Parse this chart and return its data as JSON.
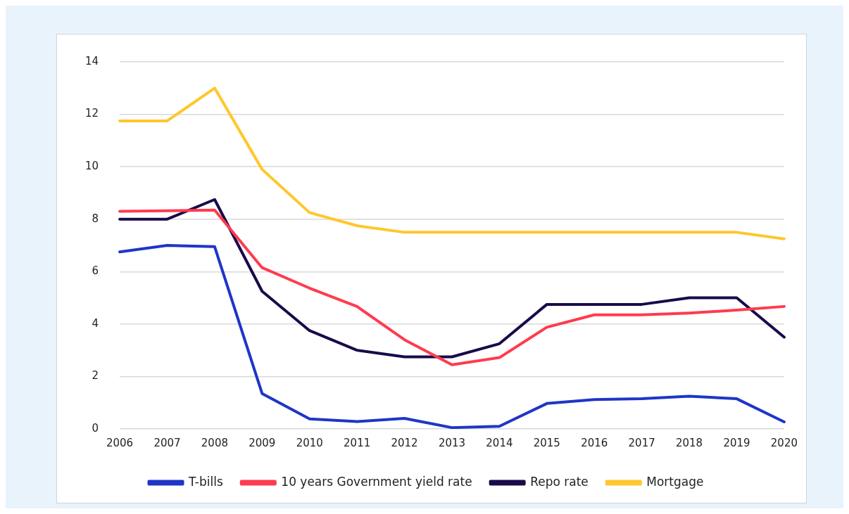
{
  "chart_data": {
    "type": "line",
    "categories": [
      "2006",
      "2007",
      "2008",
      "2009",
      "2010",
      "2011",
      "2012",
      "2013",
      "2014",
      "2015",
      "2016",
      "2017",
      "2018",
      "2019",
      "2020"
    ],
    "series": [
      {
        "name": "T-bills",
        "color": "#1f35c8",
        "values": [
          6.75,
          7.0,
          6.95,
          1.35,
          0.38,
          0.28,
          0.4,
          0.05,
          0.1,
          0.97,
          1.12,
          1.15,
          1.25,
          1.15,
          0.27
        ]
      },
      {
        "name": "10 years Government yield rate",
        "color": "#ff3b4e",
        "values": [
          8.3,
          8.32,
          8.35,
          6.15,
          5.37,
          4.67,
          3.4,
          2.45,
          2.72,
          3.88,
          4.35,
          4.35,
          4.42,
          4.53,
          4.67
        ]
      },
      {
        "name": "Repo rate",
        "color": "#1a0a4a",
        "values": [
          8.0,
          8.0,
          8.75,
          5.25,
          3.75,
          3.0,
          2.75,
          2.75,
          3.25,
          4.75,
          4.75,
          4.75,
          5.0,
          5.0,
          3.5
        ]
      },
      {
        "name": "Mortgage",
        "color": "#ffc72c",
        "values": [
          11.75,
          11.75,
          13.0,
          9.9,
          8.25,
          7.75,
          7.5,
          7.5,
          7.5,
          7.5,
          7.5,
          7.5,
          7.5,
          7.5,
          7.25
        ]
      }
    ],
    "ylim": [
      0,
      14
    ],
    "yticks": [
      0,
      2,
      4,
      6,
      8,
      10,
      12,
      14
    ],
    "grid": "y",
    "legend": "bottom",
    "marker": "none",
    "line_style": "solid"
  }
}
